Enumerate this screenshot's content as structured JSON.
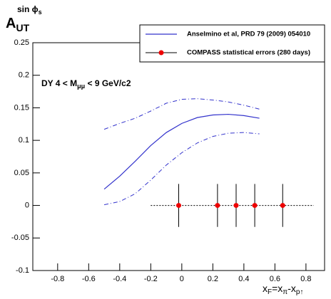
{
  "chart_data": {
    "type": "line",
    "y_label": {
      "base": "A",
      "subscript": "UT",
      "superscript": "sin ϕ",
      "superscript_sub": "s"
    },
    "x_label": [
      "x",
      "F",
      "=x",
      "π",
      "-x",
      "p↑"
    ],
    "annotation": [
      "DY 4 < M",
      "μμ",
      " < 9 GeV/c2"
    ],
    "xlim": [
      -0.96,
      0.92
    ],
    "ylim": [
      -0.1,
      0.25
    ],
    "xticks": [
      -0.8,
      -0.6,
      -0.4,
      -0.2,
      0,
      0.2,
      0.4,
      0.6,
      0.8
    ],
    "yticks": [
      -0.1,
      -0.05,
      0,
      0.05,
      0.1,
      0.15,
      0.2,
      0.25
    ],
    "series": [
      {
        "name": "Anselmino et al, PRD 79 (2009) 054010",
        "color": "#3333cc",
        "x": [
          -0.5,
          -0.4,
          -0.3,
          -0.2,
          -0.1,
          0,
          0.1,
          0.2,
          0.3,
          0.4,
          0.5
        ],
        "values": [
          0.025,
          0.045,
          0.068,
          0.092,
          0.112,
          0.126,
          0.135,
          0.139,
          0.14,
          0.138,
          0.134
        ]
      },
      {
        "name": "COMPASS statistical errors (280 days)",
        "color": "#ee0000",
        "x": [
          -0.02,
          0.23,
          0.35,
          0.47,
          0.65
        ],
        "values": [
          0,
          0,
          0,
          0,
          0
        ],
        "errors": [
          0.033,
          0.033,
          0.033,
          0.033,
          0.033
        ]
      }
    ],
    "band": {
      "color": "#3333cc",
      "x": [
        -0.5,
        -0.4,
        -0.3,
        -0.2,
        -0.1,
        0,
        0.1,
        0.2,
        0.3,
        0.4,
        0.5
      ],
      "upper": [
        0.117,
        0.126,
        0.134,
        0.145,
        0.157,
        0.163,
        0.164,
        0.162,
        0.159,
        0.154,
        0.148
      ],
      "lower": [
        0.001,
        0.006,
        0.018,
        0.039,
        0.062,
        0.081,
        0.096,
        0.106,
        0.111,
        0.112,
        0.11
      ]
    },
    "reference_line": {
      "x": [
        -0.2,
        0.85
      ],
      "y": [
        0,
        0
      ]
    }
  }
}
